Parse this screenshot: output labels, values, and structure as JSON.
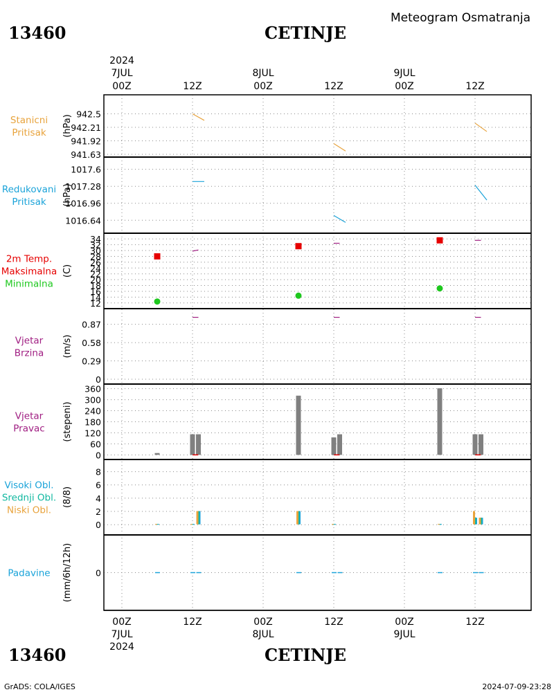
{
  "header": {
    "station_id": "13460",
    "station_name": "CETINJE",
    "title": "Meteogram Osmatranja"
  },
  "footer": {
    "credit": "GrADS: COLA/IGES",
    "timestamp": "2024-07-09-23:28"
  },
  "time_axis": {
    "top_labels": [
      {
        "hour": "00Z",
        "date": "7JUL",
        "year": "2024"
      },
      {
        "hour": "12Z",
        "date": "",
        "year": ""
      },
      {
        "hour": "00Z",
        "date": "8JUL",
        "year": ""
      },
      {
        "hour": "12Z",
        "date": "",
        "year": ""
      },
      {
        "hour": "00Z",
        "date": "9JUL",
        "year": ""
      },
      {
        "hour": "12Z",
        "date": "",
        "year": ""
      }
    ],
    "bottom_labels": [
      {
        "hour": "00Z",
        "date": "7JUL",
        "year": "2024"
      },
      {
        "hour": "12Z",
        "date": "",
        "year": ""
      },
      {
        "hour": "00Z",
        "date": "8JUL",
        "year": ""
      },
      {
        "hour": "12Z",
        "date": "",
        "year": ""
      },
      {
        "hour": "00Z",
        "date": "9JUL",
        "year": ""
      },
      {
        "hour": "12Z",
        "date": "",
        "year": ""
      }
    ]
  },
  "colors": {
    "station_pressure": "#e8a33c",
    "reduced_pressure": "#1aa3d9",
    "tmax": "#e60000",
    "tmin": "#1ec81e",
    "tline": "#a01e82",
    "wind": "#a01e82",
    "wind_bar": "#808080",
    "high_cloud": "#1aa3d9",
    "mid_cloud": "#10b8a0",
    "low_cloud": "#e8a33c",
    "precip": "#1aa3d9",
    "grid": "#888888"
  },
  "chart_data": [
    {
      "type": "line",
      "panel": "station_pressure",
      "label_lines": [
        "Stanicni",
        "Pritisak"
      ],
      "ylabel": "(hPa)",
      "yticks": [
        "942.5",
        "942.21",
        "941.92",
        "941.63"
      ],
      "ylim": [
        941.63,
        942.79
      ],
      "segments": [
        {
          "x": [
            12,
            14
          ],
          "y": [
            942.5,
            942.36
          ]
        },
        {
          "x": [
            36,
            38
          ],
          "y": [
            941.86,
            941.7
          ]
        },
        {
          "x": [
            60,
            62
          ],
          "y": [
            942.3,
            942.12
          ]
        }
      ]
    },
    {
      "type": "line",
      "panel": "reduced_pressure",
      "label_lines": [
        "Redukovani",
        "Pritisak"
      ],
      "ylabel": "(hPa)",
      "yticks": [
        "1017.6",
        "1017.28",
        "1016.96",
        "1016.64"
      ],
      "ylim": [
        1016.5,
        1017.7
      ],
      "segments": [
        {
          "x": [
            12,
            14
          ],
          "y": [
            1017.37,
            1017.37
          ]
        },
        {
          "x": [
            36,
            38
          ],
          "y": [
            1016.73,
            1016.6
          ]
        },
        {
          "x": [
            60,
            62
          ],
          "y": [
            1017.3,
            1017.02
          ]
        }
      ]
    },
    {
      "type": "scatter",
      "panel": "temperature",
      "label_lines": [
        "2m Temp.",
        "Maksimalna",
        "Minimalna"
      ],
      "ylabel": "(C)",
      "yticks": [
        "12",
        "14",
        "16",
        "18",
        "20",
        "22",
        "24",
        "26",
        "28",
        "30",
        "32",
        "34"
      ],
      "ylim": [
        11,
        35
      ],
      "series": [
        {
          "name": "Maksimalna",
          "points": [
            {
              "x": 6,
              "y": 28
            },
            {
              "x": 30,
              "y": 31.5
            },
            {
              "x": 54,
              "y": 33.5
            }
          ]
        },
        {
          "name": "Minimalna",
          "points": [
            {
              "x": 6,
              "y": 12.5
            },
            {
              "x": 30,
              "y": 14.5
            },
            {
              "x": 54,
              "y": 17
            }
          ]
        }
      ],
      "segments": [
        {
          "x": [
            12,
            13
          ],
          "y": [
            29.8,
            30.2
          ]
        },
        {
          "x": [
            36,
            37
          ],
          "y": [
            32.5,
            32.5
          ]
        },
        {
          "x": [
            60,
            61
          ],
          "y": [
            33.5,
            33.5
          ]
        }
      ]
    },
    {
      "type": "line",
      "panel": "wind_speed",
      "label_lines": [
        "Vjetar",
        "Brzina"
      ],
      "ylabel": "(m/s)",
      "yticks": [
        "0",
        "0.29",
        "0.58",
        "0.87"
      ],
      "ylim": [
        0,
        1.03
      ],
      "segments": [
        {
          "x": [
            12,
            13
          ],
          "y": [
            0.98,
            0.98
          ]
        },
        {
          "x": [
            36,
            37
          ],
          "y": [
            0.98,
            0.98
          ]
        },
        {
          "x": [
            60,
            61
          ],
          "y": [
            0.98,
            0.98
          ]
        }
      ]
    },
    {
      "type": "bar",
      "panel": "wind_direction",
      "label_lines": [
        "Vjetar",
        "Pravac"
      ],
      "ylabel": "(stepeni)",
      "yticks": [
        "0",
        "60",
        "120",
        "180",
        "240",
        "300",
        "360"
      ],
      "ylim": [
        -10,
        370
      ],
      "bars": [
        {
          "x": 6,
          "value": 10
        },
        {
          "x": 12,
          "value": 112
        },
        {
          "x": 13,
          "value": 112
        },
        {
          "x": 30,
          "value": 322
        },
        {
          "x": 36,
          "value": 95
        },
        {
          "x": 37,
          "value": 112
        },
        {
          "x": 54,
          "value": 362
        },
        {
          "x": 60,
          "value": 112
        },
        {
          "x": 61,
          "value": 112
        }
      ],
      "zero_marks": [
        {
          "x": 12.5,
          "y": 0
        },
        {
          "x": 36.5,
          "y": 0
        },
        {
          "x": 60.5,
          "y": 0
        }
      ]
    },
    {
      "type": "bar",
      "panel": "clouds",
      "label_lines": [
        "Visoki Obl.",
        "Srednji Obl.",
        "Niski Obl."
      ],
      "ylabel": "(8/8)",
      "yticks": [
        "0",
        "2",
        "4",
        "6",
        "8"
      ],
      "ylim": [
        -0.5,
        9
      ],
      "series": [
        {
          "name": "Visoki Obl.",
          "points": [
            {
              "x": 6,
              "value": 0.05
            },
            {
              "x": 12,
              "value": 0.05
            },
            {
              "x": 13,
              "value": 2
            },
            {
              "x": 30,
              "value": 2
            },
            {
              "x": 36,
              "value": 0.05
            },
            {
              "x": 54,
              "value": 0.05
            },
            {
              "x": 60,
              "value": 1
            },
            {
              "x": 61,
              "value": 1
            }
          ]
        },
        {
          "name": "Srednji Obl.",
          "points": [
            {
              "x": 6,
              "value": 0.05
            },
            {
              "x": 12,
              "value": 0.05
            },
            {
              "x": 13,
              "value": 2
            },
            {
              "x": 30,
              "value": 2
            },
            {
              "x": 36,
              "value": 0.05
            },
            {
              "x": 54,
              "value": 0.05
            },
            {
              "x": 60,
              "value": 1
            },
            {
              "x": 61,
              "value": 1
            }
          ]
        },
        {
          "name": "Niski Obl.",
          "points": [
            {
              "x": 6,
              "value": 0.05
            },
            {
              "x": 12,
              "value": 0.05
            },
            {
              "x": 13,
              "value": 2
            },
            {
              "x": 30,
              "value": 2
            },
            {
              "x": 36,
              "value": 0.05
            },
            {
              "x": 54,
              "value": 0.05
            },
            {
              "x": 60,
              "value": 2
            },
            {
              "x": 61,
              "value": 1
            }
          ]
        }
      ]
    },
    {
      "type": "bar",
      "panel": "precipitation",
      "label_lines": [
        "Padavine"
      ],
      "ylabel": "(mm/6h/12h)",
      "yticks": [
        "0"
      ],
      "ylim": [
        -4,
        4
      ],
      "points": [
        {
          "x": 6,
          "value": 0
        },
        {
          "x": 12,
          "value": 0
        },
        {
          "x": 13,
          "value": 0
        },
        {
          "x": 30,
          "value": 0
        },
        {
          "x": 36,
          "value": 0
        },
        {
          "x": 37,
          "value": 0
        },
        {
          "x": 54,
          "value": 0
        },
        {
          "x": 60,
          "value": 0
        },
        {
          "x": 61,
          "value": 0
        }
      ]
    }
  ]
}
